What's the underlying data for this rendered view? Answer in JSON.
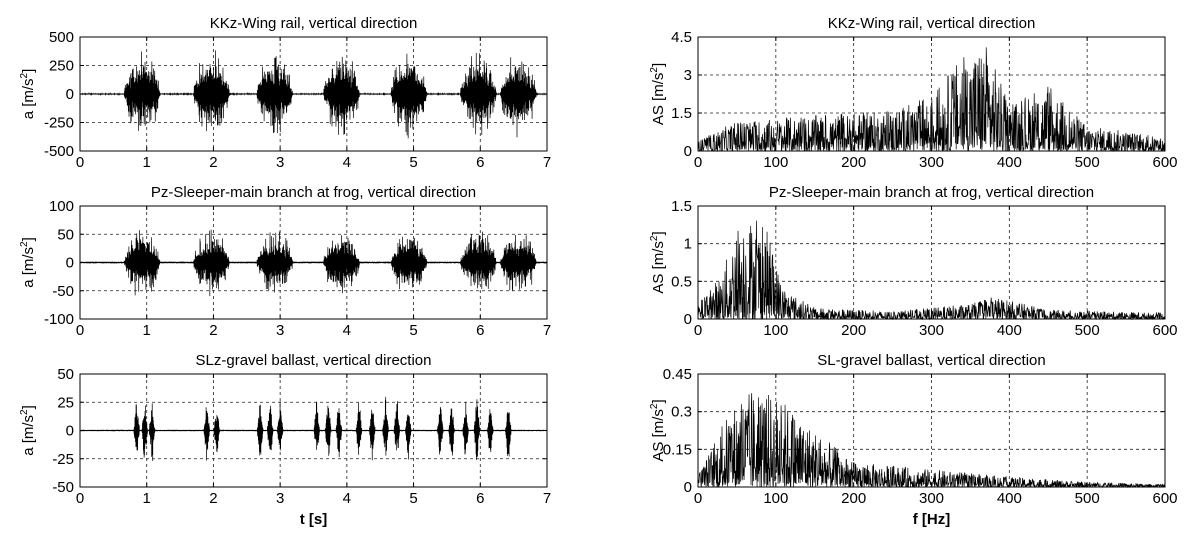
{
  "chart_data": [
    {
      "id": "kkz-time",
      "type": "line",
      "title": "KKz-Wing rail, vertical direction",
      "ylabel_base": "a [m/s",
      "ylabel_sup": "2",
      "ylabel_tail": "]",
      "xlabel": "",
      "xlim": [
        0,
        7
      ],
      "ylim": [
        -500,
        500
      ],
      "xticks": [
        "0",
        "1",
        "2",
        "3",
        "4",
        "5",
        "6",
        "7"
      ],
      "yticks": [
        "500",
        "250",
        "0",
        "-250",
        "-500"
      ],
      "ytick_values": [
        500,
        250,
        0,
        -250,
        -500
      ],
      "grid": true,
      "signal": {
        "kind": "bursts",
        "burst_centers": [
          0.93,
          1.97,
          2.92,
          3.92,
          4.93,
          5.97,
          6.57
        ],
        "burst_half_width": 0.27,
        "peak_amplitude": 430,
        "noise_amplitude": 5
      }
    },
    {
      "id": "kkz-spectrum",
      "type": "line",
      "title": "KKz-Wing rail, vertical direction",
      "ylabel_base": "AS [m/s",
      "ylabel_sup": "2",
      "ylabel_tail": "]",
      "xlabel": "",
      "xlim": [
        0,
        600
      ],
      "ylim": [
        0,
        4.5
      ],
      "xticks": [
        "0",
        "100",
        "200",
        "300",
        "400",
        "500",
        "600"
      ],
      "yticks": [
        "4.5",
        "3",
        "1.5",
        "0"
      ],
      "ytick_values": [
        4.5,
        3,
        1.5,
        0
      ],
      "grid": true,
      "signal": {
        "kind": "spectrum",
        "envelope": [
          [
            0,
            0.4
          ],
          [
            50,
            1.2
          ],
          [
            100,
            1.3
          ],
          [
            200,
            1.5
          ],
          [
            250,
            1.6
          ],
          [
            300,
            2.2
          ],
          [
            340,
            3.8
          ],
          [
            370,
            4.3
          ],
          [
            400,
            1.8
          ],
          [
            450,
            2.6
          ],
          [
            500,
            1.0
          ],
          [
            550,
            0.8
          ],
          [
            600,
            0.5
          ]
        ]
      }
    },
    {
      "id": "pz-time",
      "type": "line",
      "title": "Pz-Sleeper-main branch at frog, vertical direction",
      "ylabel_base": "a [m/s",
      "ylabel_sup": "2",
      "ylabel_tail": "]",
      "xlabel": "",
      "xlim": [
        0,
        7
      ],
      "ylim": [
        -100,
        100
      ],
      "xticks": [
        "0",
        "1",
        "2",
        "3",
        "4",
        "5",
        "6",
        "7"
      ],
      "yticks": [
        "100",
        "50",
        "0",
        "-50",
        "-100"
      ],
      "ytick_values": [
        100,
        50,
        0,
        -50,
        -100
      ],
      "grid": true,
      "signal": {
        "kind": "bursts",
        "burst_centers": [
          0.93,
          1.97,
          2.92,
          3.92,
          4.93,
          5.97,
          6.57
        ],
        "burst_half_width": 0.27,
        "peak_amplitude": 70,
        "noise_amplitude": 1.5
      }
    },
    {
      "id": "pz-spectrum",
      "type": "line",
      "title": "Pz-Sleeper-main branch at frog, vertical direction",
      "ylabel_base": "AS [m/s",
      "ylabel_sup": "2",
      "ylabel_tail": "]",
      "xlabel": "",
      "xlim": [
        0,
        600
      ],
      "ylim": [
        0,
        1.5
      ],
      "xticks": [
        "0",
        "100",
        "200",
        "300",
        "400",
        "500",
        "600"
      ],
      "yticks": [
        "1.5",
        "1",
        "0.5",
        "0"
      ],
      "ytick_values": [
        1.5,
        1,
        0.5,
        0
      ],
      "grid": true,
      "signal": {
        "kind": "spectrum",
        "envelope": [
          [
            0,
            0.2
          ],
          [
            30,
            0.6
          ],
          [
            55,
            1.4
          ],
          [
            85,
            1.3
          ],
          [
            110,
            0.4
          ],
          [
            150,
            0.15
          ],
          [
            250,
            0.1
          ],
          [
            350,
            0.2
          ],
          [
            380,
            0.3
          ],
          [
            450,
            0.12
          ],
          [
            600,
            0.08
          ]
        ]
      }
    },
    {
      "id": "sl-time",
      "type": "line",
      "title": "SLz-gravel ballast, vertical direction",
      "ylabel_base": "a [m/s",
      "ylabel_sup": "2",
      "ylabel_tail": "]",
      "xlabel": "t [s]",
      "xlim": [
        0,
        7
      ],
      "ylim": [
        -50,
        50
      ],
      "xticks": [
        "0",
        "1",
        "2",
        "3",
        "4",
        "5",
        "6",
        "7"
      ],
      "yticks": [
        "50",
        "25",
        "0",
        "-25",
        "-50"
      ],
      "ytick_values": [
        50,
        25,
        0,
        -25,
        -50
      ],
      "grid": true,
      "signal": {
        "kind": "spikes",
        "spike_times": [
          0.85,
          0.97,
          1.08,
          1.9,
          2.05,
          2.7,
          2.85,
          3.0,
          3.55,
          3.72,
          3.88,
          4.18,
          4.38,
          4.58,
          4.75,
          4.92,
          5.4,
          5.57,
          5.78,
          5.95,
          6.15,
          6.42
        ],
        "peak_amplitude": 36,
        "noise_amplitude": 0.6
      }
    },
    {
      "id": "sl-spectrum",
      "type": "line",
      "title": "SL-gravel ballast, vertical direction",
      "ylabel_base": "AS [m/s",
      "ylabel_sup": "2",
      "ylabel_tail": "]",
      "xlabel": "f [Hz]",
      "xlim": [
        0,
        600
      ],
      "ylim": [
        0,
        0.45
      ],
      "xticks": [
        "0",
        "100",
        "200",
        "300",
        "400",
        "500",
        "600"
      ],
      "yticks": [
        "0.45",
        "0.3",
        "0.15",
        "0"
      ],
      "ytick_values": [
        0.45,
        0.3,
        0.15,
        0
      ],
      "grid": true,
      "signal": {
        "kind": "spectrum",
        "envelope": [
          [
            0,
            0.05
          ],
          [
            40,
            0.3
          ],
          [
            60,
            0.38
          ],
          [
            100,
            0.37
          ],
          [
            120,
            0.32
          ],
          [
            160,
            0.2
          ],
          [
            200,
            0.1
          ],
          [
            300,
            0.07
          ],
          [
            400,
            0.04
          ],
          [
            500,
            0.02
          ],
          [
            600,
            0.01
          ]
        ]
      }
    }
  ]
}
